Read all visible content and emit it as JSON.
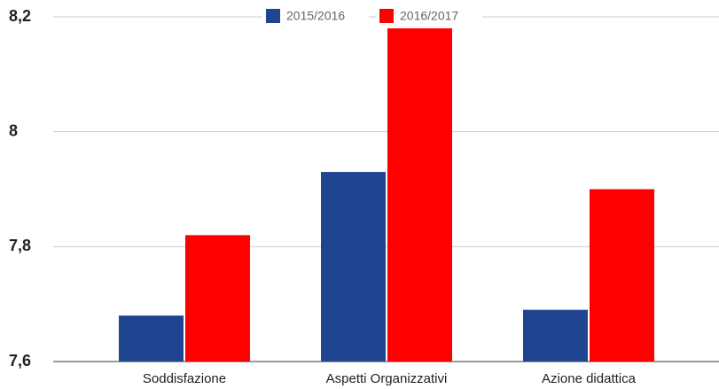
{
  "chart_data": {
    "type": "bar",
    "categories": [
      "Soddisfazione",
      "Aspetti Organizzativi",
      "Azione didattica"
    ],
    "series": [
      {
        "name": "2015/2016",
        "color": "#1f4591",
        "values": [
          7.68,
          7.93,
          7.69
        ]
      },
      {
        "name": "2016/2017",
        "color": "#ff0000",
        "values": [
          7.82,
          8.18,
          7.9
        ]
      }
    ],
    "ylim": [
      7.6,
      8.2
    ],
    "yticks": [
      {
        "value": 7.6,
        "label": "7,6"
      },
      {
        "value": 7.8,
        "label": "7,8"
      },
      8,
      {
        "value": 8.2,
        "label": "8,2"
      }
    ],
    "grid": true,
    "legend": "top"
  }
}
